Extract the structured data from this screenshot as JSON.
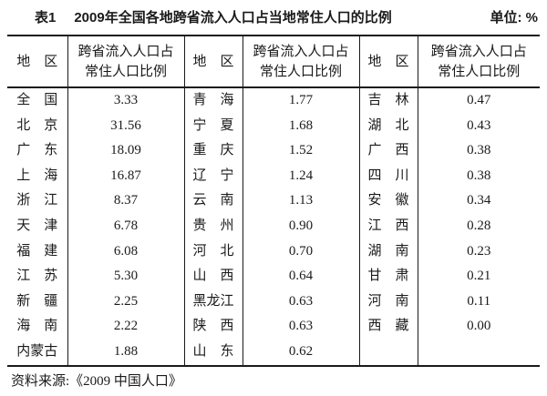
{
  "title": {
    "label": "表1",
    "text": "2009年全国各地跨省流入人口占当地常住人口的比例",
    "unit": "单位: %"
  },
  "table": {
    "region_header": "地　区",
    "value_header": "跨省流入人口占\n常住人口比例",
    "groups": [
      {
        "rows": [
          {
            "region": "全　国",
            "value": "3.33"
          },
          {
            "region": "北　京",
            "value": "31.56"
          },
          {
            "region": "广　东",
            "value": "18.09"
          },
          {
            "region": "上　海",
            "value": "16.87"
          },
          {
            "region": "浙　江",
            "value": "8.37"
          },
          {
            "region": "天　津",
            "value": "6.78"
          },
          {
            "region": "福　建",
            "value": "6.08"
          },
          {
            "region": "江　苏",
            "value": "5.30"
          },
          {
            "region": "新　疆",
            "value": "2.25"
          },
          {
            "region": "海　南",
            "value": "2.22"
          },
          {
            "region": "内蒙古",
            "value": "1.88"
          }
        ]
      },
      {
        "rows": [
          {
            "region": "青　海",
            "value": "1.77"
          },
          {
            "region": "宁　夏",
            "value": "1.68"
          },
          {
            "region": "重　庆",
            "value": "1.52"
          },
          {
            "region": "辽　宁",
            "value": "1.24"
          },
          {
            "region": "云　南",
            "value": "1.13"
          },
          {
            "region": "贵　州",
            "value": "0.90"
          },
          {
            "region": "河　北",
            "value": "0.70"
          },
          {
            "region": "山　西",
            "value": "0.64"
          },
          {
            "region": "黑龙江",
            "value": "0.63"
          },
          {
            "region": "陕　西",
            "value": "0.63"
          },
          {
            "region": "山　东",
            "value": "0.62"
          }
        ]
      },
      {
        "rows": [
          {
            "region": "吉　林",
            "value": "0.47"
          },
          {
            "region": "湖　北",
            "value": "0.43"
          },
          {
            "region": "广　西",
            "value": "0.38"
          },
          {
            "region": "四　川",
            "value": "0.38"
          },
          {
            "region": "安　徽",
            "value": "0.34"
          },
          {
            "region": "江　西",
            "value": "0.28"
          },
          {
            "region": "湖　南",
            "value": "0.23"
          },
          {
            "region": "甘　肃",
            "value": "0.21"
          },
          {
            "region": "河　南",
            "value": "0.11"
          },
          {
            "region": "西　藏",
            "value": "0.00"
          }
        ]
      }
    ]
  },
  "footer": {
    "source": "资料来源:《2009 中国人口》"
  },
  "colors": {
    "background": "#ffffff",
    "text": "#1a1a1a",
    "rule": "#1a1a1a"
  },
  "chart_data": {
    "type": "table",
    "title": "表1 2009年全国各地跨省流入人口占当地常住人口的比例",
    "unit": "%",
    "columns": [
      "地区",
      "跨省流入人口占常住人口比例"
    ],
    "rows": [
      [
        "全国",
        3.33
      ],
      [
        "北京",
        31.56
      ],
      [
        "广东",
        18.09
      ],
      [
        "上海",
        16.87
      ],
      [
        "浙江",
        8.37
      ],
      [
        "天津",
        6.78
      ],
      [
        "福建",
        6.08
      ],
      [
        "江苏",
        5.3
      ],
      [
        "新疆",
        2.25
      ],
      [
        "海南",
        2.22
      ],
      [
        "内蒙古",
        1.88
      ],
      [
        "青海",
        1.77
      ],
      [
        "宁夏",
        1.68
      ],
      [
        "重庆",
        1.52
      ],
      [
        "辽宁",
        1.24
      ],
      [
        "云南",
        1.13
      ],
      [
        "贵州",
        0.9
      ],
      [
        "河北",
        0.7
      ],
      [
        "山西",
        0.64
      ],
      [
        "黑龙江",
        0.63
      ],
      [
        "陕西",
        0.63
      ],
      [
        "山东",
        0.62
      ],
      [
        "吉林",
        0.47
      ],
      [
        "湖北",
        0.43
      ],
      [
        "广西",
        0.38
      ],
      [
        "四川",
        0.38
      ],
      [
        "安徽",
        0.34
      ],
      [
        "江西",
        0.28
      ],
      [
        "湖南",
        0.23
      ],
      [
        "甘肃",
        0.21
      ],
      [
        "河南",
        0.11
      ],
      [
        "西藏",
        0.0
      ]
    ],
    "source": "资料来源:《2009 中国人口》",
    "layout": "three side-by-side region/value column pairs"
  }
}
